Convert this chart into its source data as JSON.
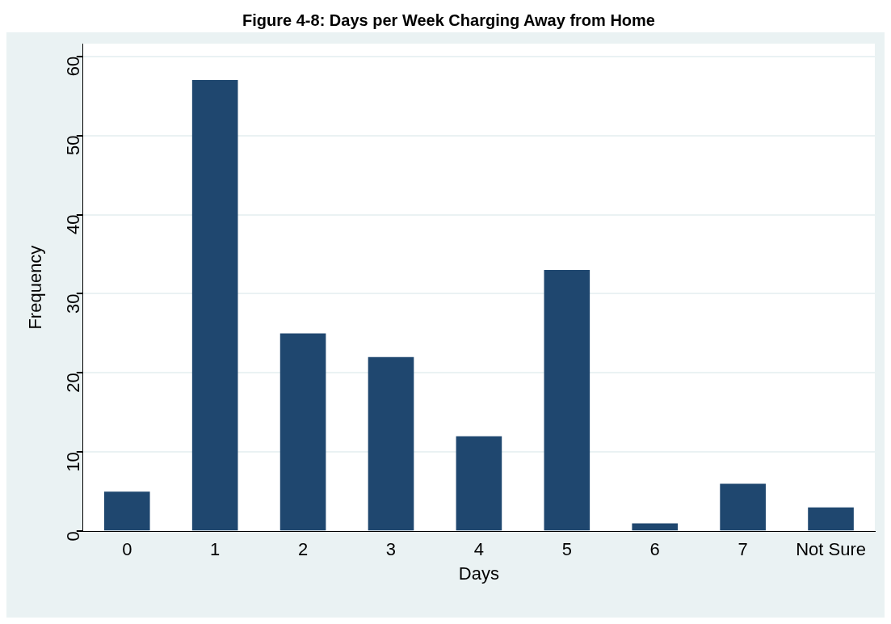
{
  "chart_data": {
    "type": "bar",
    "title": "Figure 4-8: Days per Week Charging Away from Home",
    "xlabel": "Days",
    "ylabel": "Frequency",
    "categories": [
      "0",
      "1",
      "2",
      "3",
      "4",
      "5",
      "6",
      "7",
      "Not Sure"
    ],
    "values": [
      5,
      57,
      25,
      22,
      12,
      33,
      1,
      6,
      3
    ],
    "color": "#1f476f",
    "ylim": [
      0,
      61.6
    ],
    "yticks": [
      0,
      10,
      20,
      30,
      40,
      50,
      60
    ],
    "grid": "y"
  }
}
